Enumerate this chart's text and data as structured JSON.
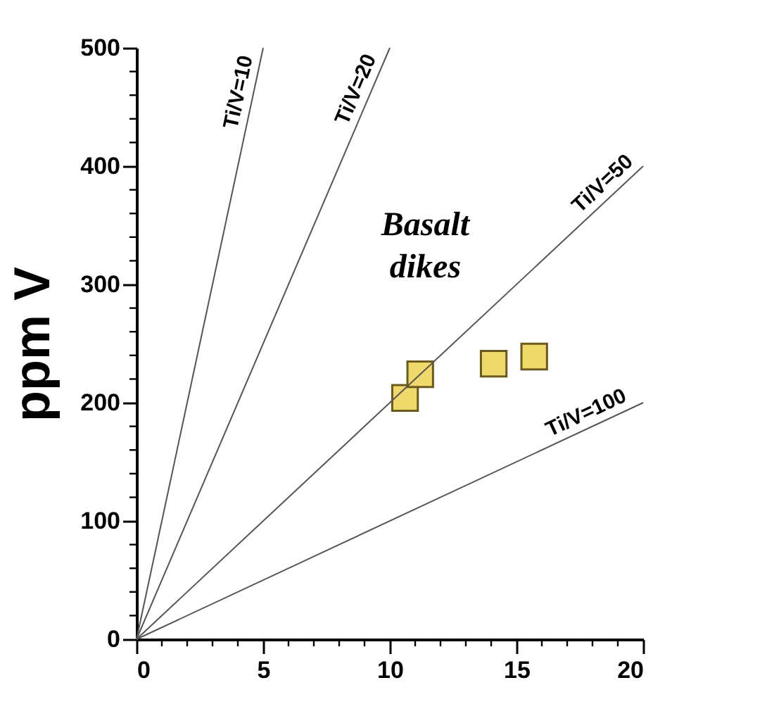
{
  "chart_data": {
    "type": "scatter",
    "ylabel": "ppm V",
    "xlim": [
      0,
      20
    ],
    "ylim": [
      0,
      500
    ],
    "xticks": [
      0,
      {
        "value": 1,
        "label": null
      },
      {
        "value": 2,
        "label": null
      },
      {
        "value": 3,
        "label": null
      },
      {
        "value": 4,
        "label": null
      },
      5,
      {
        "value": 6,
        "label": null
      },
      {
        "value": 7,
        "label": null
      },
      {
        "value": 8,
        "label": null
      },
      {
        "value": 9,
        "label": null
      },
      10,
      {
        "value": 11,
        "label": null
      },
      {
        "value": 12,
        "label": null
      },
      {
        "value": 13,
        "label": null
      },
      {
        "value": 14,
        "label": null
      },
      15,
      {
        "value": 16,
        "label": null
      },
      {
        "value": 17,
        "label": null
      },
      {
        "value": 18,
        "label": null
      },
      {
        "value": 19,
        "label": null
      },
      20
    ],
    "yticks": [
      0,
      {
        "value": 20,
        "label": null
      },
      {
        "value": 40,
        "label": null
      },
      {
        "value": 60,
        "label": null
      },
      {
        "value": 80,
        "label": null
      },
      100,
      {
        "value": 120,
        "label": null
      },
      {
        "value": 140,
        "label": null
      },
      {
        "value": 160,
        "label": null
      },
      {
        "value": 180,
        "label": null
      },
      200,
      {
        "value": 220,
        "label": null
      },
      {
        "value": 240,
        "label": null
      },
      {
        "value": 260,
        "label": null
      },
      {
        "value": 280,
        "label": null
      },
      300,
      {
        "value": 320,
        "label": null
      },
      {
        "value": 340,
        "label": null
      },
      {
        "value": 360,
        "label": null
      },
      {
        "value": 380,
        "label": null
      },
      400,
      {
        "value": 420,
        "label": null
      },
      {
        "value": 440,
        "label": null
      },
      {
        "value": 460,
        "label": null
      },
      {
        "value": 480,
        "label": null
      },
      500
    ],
    "grid": false,
    "series": [
      {
        "marker": "square",
        "color": "#efd96a",
        "x": [
          10.6,
          11.2,
          14.1,
          15.7
        ],
        "values": [
          204,
          224,
          233,
          239
        ]
      },
      {
        "type": "line",
        "color": "#555555",
        "line_style": "solid",
        "x": [
          0,
          5
        ],
        "values": [
          0,
          500
        ]
      },
      {
        "type": "line",
        "color": "#555555",
        "line_style": "solid",
        "x": [
          0,
          10
        ],
        "values": [
          0,
          500
        ]
      },
      {
        "type": "line",
        "color": "#555555",
        "line_style": "solid",
        "x": [
          0,
          20
        ],
        "values": [
          0,
          400
        ]
      },
      {
        "type": "line",
        "color": "#555555",
        "line_style": "solid",
        "x": [
          0,
          20
        ],
        "values": [
          0,
          200
        ]
      }
    ],
    "annotations": [
      {
        "text": "Ti/V=10",
        "x": 4.6,
        "y": 460
      },
      {
        "text": "Ti/V=20",
        "x": 9.2,
        "y": 460
      },
      {
        "text": "Ti/V=50",
        "x": 18.8,
        "y": 376
      },
      {
        "text": "Ti/V=100",
        "x": 18.0,
        "y": 180
      },
      "Basalt\ndikes"
    ]
  }
}
